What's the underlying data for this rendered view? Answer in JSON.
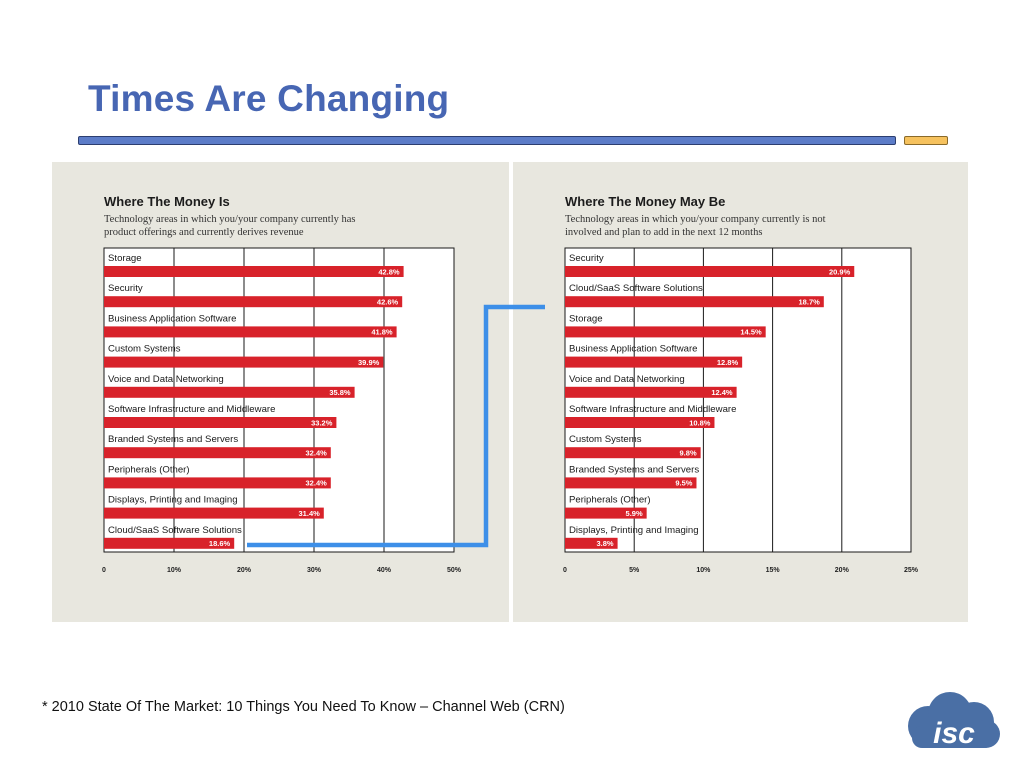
{
  "slide": {
    "title": "Times Are Changing",
    "footnote": "* 2010 State Of The Market: 10 Things You Need To Know – Channel Web (CRN)",
    "logo_text": "isc",
    "colors": {
      "title": "#4766b3",
      "rule": "#5c7cc8",
      "accent": "#f6c25e",
      "bar": "#d8222a",
      "connector": "#3d8fe8",
      "logo": "#4a6fa5"
    }
  },
  "chart_data": [
    {
      "type": "bar",
      "orientation": "horizontal",
      "title": "Where The Money Is",
      "subtitle_lines": [
        "Technology areas in which you/your company currently has",
        "product offerings and currently derives revenue"
      ],
      "categories": [
        "Storage",
        "Security",
        "Business Application Software",
        "Custom Systems",
        "Voice and Data Networking",
        "Software Infrastructure and Middleware",
        "Branded Systems and Servers",
        "Peripherals (Other)",
        "Displays, Printing and Imaging",
        "Cloud/SaaS Software Solutions"
      ],
      "values": [
        42.8,
        42.6,
        41.8,
        39.9,
        35.8,
        33.2,
        32.4,
        32.4,
        31.4,
        18.6
      ],
      "value_labels": [
        "42.8%",
        "42.6%",
        "41.8%",
        "39.9%",
        "35.8%",
        "33.2%",
        "32.4%",
        "32.4%",
        "31.4%",
        "18.6%"
      ],
      "xlim": [
        0,
        50
      ],
      "xticks": [
        0,
        10,
        20,
        30,
        40,
        50
      ],
      "xtick_labels": [
        "0",
        "10%",
        "20%",
        "30%",
        "40%",
        "50%"
      ],
      "grid": true
    },
    {
      "type": "bar",
      "orientation": "horizontal",
      "title": "Where The Money May Be",
      "subtitle_lines": [
        "Technology areas in which you/your company currently is not",
        "involved and plan to add in the next 12 months"
      ],
      "categories": [
        "Security",
        "Cloud/SaaS Software Solutions",
        "Storage",
        "Business Application Software",
        "Voice and Data Networking",
        "Software Infrastructure and Middleware",
        "Custom Systems",
        "Branded Systems and Servers",
        "Peripherals (Other)",
        "Displays, Printing and Imaging"
      ],
      "values": [
        20.9,
        18.7,
        14.5,
        12.8,
        12.4,
        10.8,
        9.8,
        9.5,
        5.9,
        3.8
      ],
      "value_labels": [
        "20.9%",
        "18.7%",
        "14.5%",
        "12.8%",
        "12.4%",
        "10.8%",
        "9.8%",
        "9.5%",
        "5.9%",
        "3.8%"
      ],
      "xlim": [
        0,
        25
      ],
      "xticks": [
        0,
        5,
        10,
        15,
        20,
        25
      ],
      "xtick_labels": [
        "0",
        "5%",
        "10%",
        "15%",
        "20%",
        "25%"
      ],
      "grid": true
    }
  ]
}
